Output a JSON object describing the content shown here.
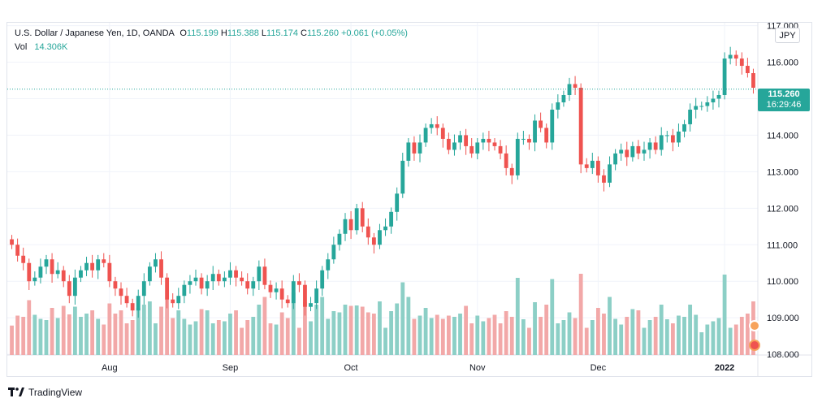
{
  "legend": {
    "symbol": "U.S. Dollar / Japanese Yen, 1D, OANDA",
    "o_label": "O",
    "o": "115.199",
    "h_label": "H",
    "h": "115.388",
    "l_label": "L",
    "l": "115.174",
    "c_label": "C",
    "c": "115.260",
    "change": "+0.061 (+0.05%)",
    "vol_label": "Vol",
    "vol": "14.306K"
  },
  "currency_badge": "JPY",
  "last_price": {
    "price": "115.260",
    "countdown": "16:29:46"
  },
  "brand": "TradingView",
  "colors": {
    "up": "#26a69a",
    "down": "#ef5350",
    "vol_up": "#8ccfc6",
    "vol_down": "#f2a8a8"
  },
  "chart_data": {
    "type": "candlestick",
    "y_ticks": [
      "117.000",
      "116.000",
      "115.000",
      "114.000",
      "113.000",
      "112.000",
      "111.000",
      "110.000",
      "109.000",
      "108.000"
    ],
    "ylim": [
      107.98,
      117.08
    ],
    "last_close": 115.26,
    "x_ticks": [
      {
        "label": "Aug",
        "index": 17
      },
      {
        "label": "Sep",
        "index": 38
      },
      {
        "label": "Oct",
        "index": 59
      },
      {
        "label": "Nov",
        "index": 81
      },
      {
        "label": "Dec",
        "index": 102
      },
      {
        "label": "2022",
        "index": 124
      }
    ],
    "closes": [
      111.0,
      110.7,
      110.5,
      110.0,
      110.1,
      110.4,
      110.6,
      110.2,
      110.3,
      110.0,
      109.6,
      110.1,
      110.3,
      110.5,
      110.3,
      110.6,
      110.5,
      110.0,
      109.8,
      109.6,
      109.4,
      109.2,
      109.6,
      110.0,
      110.4,
      110.6,
      110.1,
      109.5,
      109.4,
      109.6,
      109.9,
      110.0,
      110.1,
      109.8,
      110.0,
      110.2,
      110.0,
      110.1,
      110.3,
      110.1,
      110.0,
      109.8,
      110.0,
      110.4,
      109.9,
      109.7,
      109.8,
      109.5,
      109.4,
      110.0,
      109.9,
      109.3,
      109.4,
      109.8,
      110.3,
      110.6,
      111.0,
      111.3,
      111.7,
      111.4,
      112.0,
      111.5,
      111.2,
      111.0,
      111.4,
      111.5,
      111.9,
      112.4,
      113.3,
      113.8,
      113.5,
      113.8,
      114.2,
      114.3,
      114.2,
      113.9,
      113.6,
      113.8,
      114.0,
      113.7,
      113.5,
      113.8,
      113.9,
      113.8,
      113.7,
      113.5,
      113.1,
      112.9,
      113.9,
      113.9,
      113.8,
      114.4,
      114.2,
      113.8,
      114.7,
      114.9,
      115.1,
      115.4,
      115.3,
      113.2,
      113.1,
      113.3,
      112.9,
      112.7,
      113.2,
      113.5,
      113.6,
      113.4,
      113.7,
      113.5,
      113.6,
      113.8,
      113.6,
      114.0,
      114.0,
      113.8,
      114.1,
      114.3,
      114.7,
      114.8,
      114.8,
      114.9,
      115.0,
      115.1,
      116.1,
      116.2,
      116.1,
      115.9,
      115.7,
      115.3
    ]
  }
}
